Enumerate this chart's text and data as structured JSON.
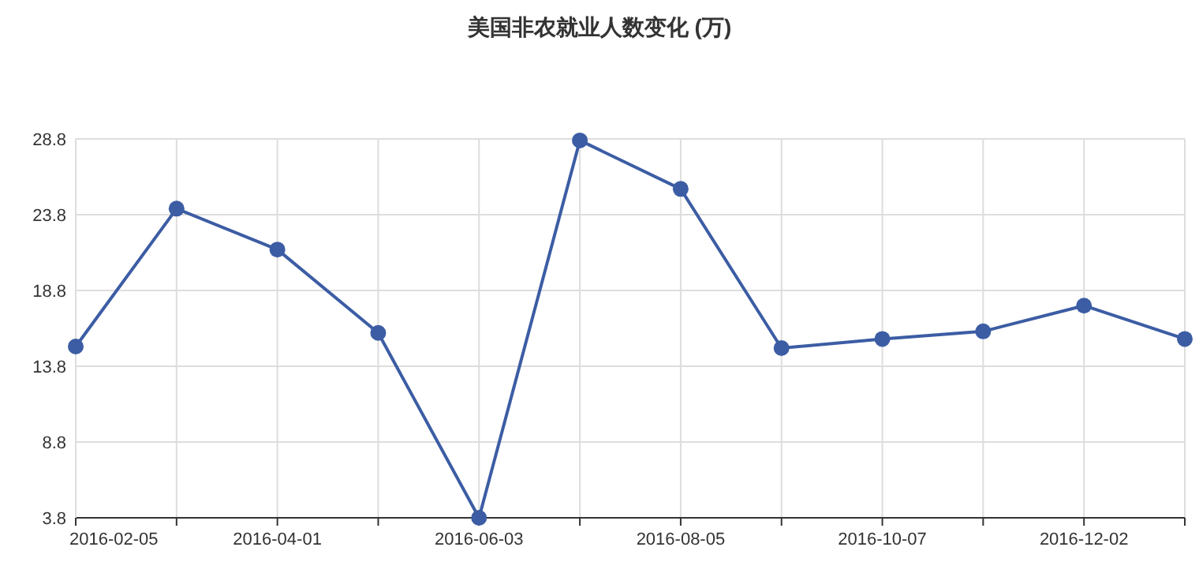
{
  "chart_data": {
    "type": "line",
    "title": "美国非农就业人数变化 (万)",
    "categories": [
      "2016-02-05",
      null,
      "2016-04-01",
      null,
      "2016-06-03",
      null,
      "2016-08-05",
      null,
      "2016-10-07",
      null,
      "2016-12-02",
      null
    ],
    "values": [
      15.1,
      24.2,
      21.5,
      16.0,
      3.8,
      28.7,
      25.5,
      15.0,
      15.6,
      16.1,
      17.8,
      15.6
    ],
    "color": "#3c5da4",
    "ylim": [
      3.8,
      28.8
    ],
    "yticks": [
      3.8,
      8.8,
      13.8,
      18.8,
      23.8,
      28.8
    ],
    "grid": true,
    "marker": "circle",
    "line_style": "solid"
  }
}
